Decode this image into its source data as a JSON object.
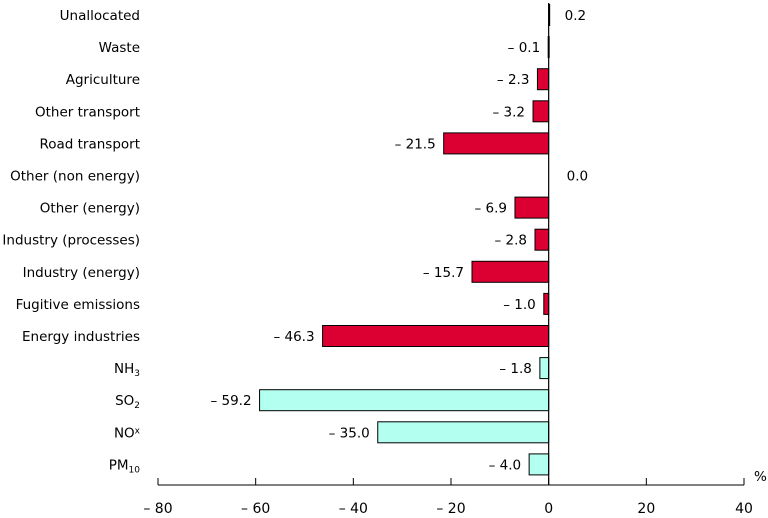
{
  "chart_data": {
    "type": "bar",
    "orientation": "horizontal",
    "unit_label": "%",
    "xlim": [
      -80,
      40
    ],
    "x_ticks": [
      -80,
      -60,
      -40,
      -20,
      0,
      20,
      40
    ],
    "x_tick_labels": [
      "– 80",
      "– 60",
      "– 40",
      "– 20",
      "0",
      "20",
      "40"
    ],
    "colors": {
      "sector": "#dc0032",
      "pollutant": "#b3fff0",
      "outline": "#000000"
    },
    "bars": [
      {
        "category": "Unallocated",
        "value": 0.2,
        "label": "0.2",
        "group": "sector"
      },
      {
        "category": "Waste",
        "value": -0.1,
        "label": "– 0.1",
        "group": "sector"
      },
      {
        "category": "Agriculture",
        "value": -2.3,
        "label": "– 2.3",
        "group": "sector"
      },
      {
        "category": "Other transport",
        "value": -3.2,
        "label": "– 3.2",
        "group": "sector"
      },
      {
        "category": "Road transport",
        "value": -21.5,
        "label": "– 21.5",
        "group": "sector"
      },
      {
        "category": "Other (non energy)",
        "value": 0.0,
        "label": "0.0",
        "group": "sector"
      },
      {
        "category": "Other (energy)",
        "value": -6.9,
        "label": "– 6.9",
        "group": "sector"
      },
      {
        "category": "Industry (processes)",
        "value": -2.8,
        "label": "– 2.8",
        "group": "sector"
      },
      {
        "category": "Industry (energy)",
        "value": -15.7,
        "label": "– 15.7",
        "group": "sector"
      },
      {
        "category": "Fugitive emissions",
        "value": -1.0,
        "label": "– 1.0",
        "group": "sector"
      },
      {
        "category": "Energy industries",
        "value": -46.3,
        "label": "– 46.3",
        "group": "sector"
      },
      {
        "category": "NH",
        "category_sub": "3",
        "sub_style": "sub",
        "value": -1.8,
        "label": "– 1.8",
        "group": "pollutant"
      },
      {
        "category": "SO",
        "category_sub": "2",
        "sub_style": "sub",
        "value": -59.2,
        "label": "– 59.2",
        "group": "pollutant"
      },
      {
        "category": "NO",
        "category_sub": "x",
        "sub_style": "sup",
        "value": -35.0,
        "label": "– 35.0",
        "group": "pollutant"
      },
      {
        "category": "PM",
        "category_sub": "10",
        "sub_style": "sub",
        "value": -4.0,
        "label": "– 4.0",
        "group": "pollutant"
      }
    ]
  }
}
